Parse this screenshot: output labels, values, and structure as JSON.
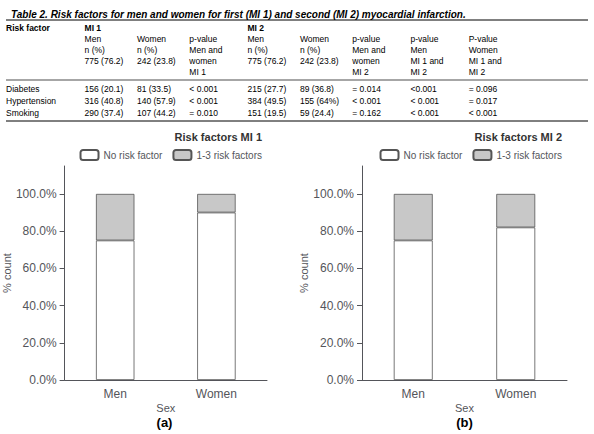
{
  "title": "Table 2. Risk factors for men and women for first (MI 1) and second (MI 2) myocardial infarction.",
  "table": {
    "header": [
      [
        "Risk factor",
        "MI 1",
        null,
        null,
        "MI 2",
        null,
        null,
        null,
        null
      ],
      [
        null,
        "Men",
        "Women",
        "p-value",
        "Men",
        "Women",
        "p-value",
        "p-value",
        "P-value"
      ],
      [
        null,
        "n (%)",
        "n (%)",
        "Men and",
        "n (%)",
        "n (%)",
        "Men and",
        "Men",
        "Women"
      ],
      [
        null,
        "775 (76.2)",
        "242 (23.8)",
        "women",
        "775 (76.2)",
        "242 (23.8)",
        "women",
        "MI 1 and",
        "MI 1 and"
      ],
      [
        null,
        null,
        null,
        "MI 1",
        null,
        null,
        "MI 2",
        "MI 2",
        "MI 2"
      ]
    ],
    "rows": [
      [
        "Diabetes",
        "156 (20.1)",
        "81 (33.5)",
        "< 0.001",
        "215 (27.7)",
        "89 (36.8)",
        "= 0.014",
        "<0.001",
        "= 0.096"
      ],
      [
        "Hypertension",
        "316 (40.8)",
        "140 (57.9)",
        "< 0.001",
        "384 (49.5)",
        "155 (64%)",
        "< 0.001",
        "< 0.001",
        "= 0.017"
      ],
      [
        "Smoking",
        "290 (37.4)",
        "107 (44.2)",
        "= 0.010",
        "151 (19.5)",
        "59 (24.4)",
        "= 0.162",
        "< 0.001",
        "< 0.001"
      ]
    ]
  },
  "chart_data": [
    {
      "type": "bar",
      "title": "Risk factors MI 1",
      "xlabel": "Sex",
      "ylabel": "% count",
      "annotation": "(a)",
      "categories": [
        "Men",
        "Women"
      ],
      "series": [
        {
          "name": "No risk factor",
          "color": "#ffffff",
          "values": [
            75.0,
            90.0
          ]
        },
        {
          "name": "1-3 risk factors",
          "color": "#c8c8c8",
          "values": [
            25.0,
            10.0
          ]
        }
      ],
      "stacked": true,
      "legend": "upper right",
      "grid": false,
      "ylim": [
        0,
        115
      ],
      "yticks": [
        {
          "value": 0,
          "label": "0.0%"
        },
        {
          "value": 20,
          "label": "20.0%"
        },
        {
          "value": 40,
          "label": "40.0%"
        },
        {
          "value": 60,
          "label": "60.0%"
        },
        {
          "value": 80,
          "label": "80.0%"
        },
        {
          "value": 100,
          "label": "100.0%"
        }
      ]
    },
    {
      "type": "bar",
      "title": "Risk factors MI 2",
      "xlabel": "Sex",
      "ylabel": "% count",
      "annotation": "(b)",
      "categories": [
        "Men",
        "Women"
      ],
      "series": [
        {
          "name": "No risk factor",
          "color": "#ffffff",
          "values": [
            75.0,
            82.0
          ]
        },
        {
          "name": "1-3 risk factors",
          "color": "#c8c8c8",
          "values": [
            25.0,
            18.0
          ]
        }
      ],
      "stacked": true,
      "legend": "upper right",
      "grid": false,
      "ylim": [
        0,
        115
      ],
      "yticks": [
        {
          "value": 0,
          "label": "0.0%"
        },
        {
          "value": 20,
          "label": "20.0%"
        },
        {
          "value": 40,
          "label": "40.0%"
        },
        {
          "value": 60,
          "label": "60.0%"
        },
        {
          "value": 80,
          "label": "80.0%"
        },
        {
          "value": 100,
          "label": "100.0%"
        }
      ]
    }
  ]
}
